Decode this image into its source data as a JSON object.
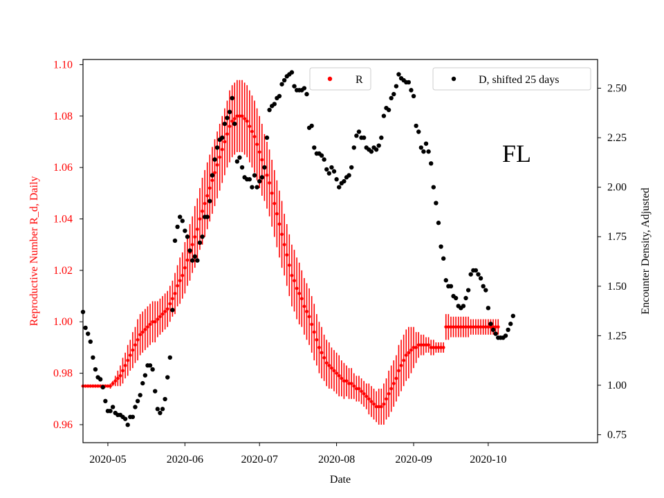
{
  "chart_data": {
    "type": "scatter",
    "title": "",
    "annotation": "FL",
    "xlabel": "Date",
    "ylabel_left": "Reproductive Number R_d, Daily",
    "ylabel_right": "Encounter Density, Adjusted",
    "left_color": "#ff0000",
    "right_color": "#000000",
    "x_range_days": [
      -10,
      197
    ],
    "ylim_left": [
      0.953,
      1.102
    ],
    "ylim_right": [
      0.71,
      2.645
    ],
    "x_ticks": [
      {
        "label": "2020-05",
        "day": 0
      },
      {
        "label": "2020-06",
        "day": 31
      },
      {
        "label": "2020-07",
        "day": 61
      },
      {
        "label": "2020-08",
        "day": 92
      },
      {
        "label": "2020-09",
        "day": 123
      },
      {
        "label": "2020-10",
        "day": 153
      }
    ],
    "y_ticks_left": [
      "0.96",
      "0.98",
      "1.00",
      "1.02",
      "1.04",
      "1.06",
      "1.08",
      "1.10"
    ],
    "y_ticks_right": [
      "0.75",
      "1.00",
      "1.25",
      "1.50",
      "1.75",
      "2.00",
      "2.25",
      "2.50"
    ],
    "legend": [
      {
        "label": "R",
        "color": "#ff0000",
        "position": "top-center"
      },
      {
        "label": "D, shifted 25 days",
        "color": "#000000",
        "position": "top-right"
      }
    ],
    "series_R": {
      "name": "R",
      "start_day": -10,
      "day_step": 1,
      "mean": [
        0.975,
        0.975,
        0.975,
        0.975,
        0.975,
        0.975,
        0.975,
        0.975,
        0.975,
        0.975,
        0.975,
        0.975,
        0.976,
        0.977,
        0.978,
        0.979,
        0.981,
        0.983,
        0.985,
        0.987,
        0.989,
        0.991,
        0.993,
        0.995,
        0.996,
        0.997,
        0.998,
        0.999,
        1.0,
        1.0,
        1.001,
        1.002,
        1.003,
        1.004,
        1.005,
        1.007,
        1.009,
        1.011,
        1.014,
        1.016,
        1.018,
        1.021,
        1.024,
        1.027,
        1.03,
        1.033,
        1.036,
        1.04,
        1.043,
        1.046,
        1.049,
        1.052,
        1.055,
        1.058,
        1.061,
        1.064,
        1.067,
        1.07,
        1.073,
        1.076,
        1.078,
        1.079,
        1.08,
        1.08,
        1.08,
        1.079,
        1.078,
        1.076,
        1.074,
        1.072,
        1.069,
        1.066,
        1.063,
        1.06,
        1.057,
        1.054,
        1.05,
        1.046,
        1.042,
        1.038,
        1.034,
        1.03,
        1.026,
        1.022,
        1.018,
        1.016,
        1.013,
        1.011,
        1.009,
        1.006,
        1.004,
        1.002,
        0.999,
        0.996,
        0.993,
        0.99,
        0.988,
        0.986,
        0.984,
        0.983,
        0.982,
        0.981,
        0.98,
        0.979,
        0.978,
        0.977,
        0.977,
        0.976,
        0.976,
        0.975,
        0.974,
        0.974,
        0.973,
        0.972,
        0.971,
        0.97,
        0.969,
        0.968,
        0.967,
        0.967,
        0.967,
        0.968,
        0.97,
        0.972,
        0.974,
        0.976,
        0.978,
        0.981,
        0.983,
        0.985,
        0.987,
        0.988,
        0.989,
        0.99,
        0.99,
        0.991,
        0.991,
        0.991,
        0.991,
        0.991,
        0.99,
        0.99,
        0.99,
        0.99,
        0.99,
        0.99,
        0.998,
        0.998,
        0.998,
        0.998,
        0.998,
        0.998,
        0.998,
        0.998,
        0.998,
        0.998,
        0.998,
        0.998,
        0.998,
        0.998,
        0.998,
        0.998,
        0.998,
        0.998,
        0.998,
        0.998,
        0.998,
        0.998
      ],
      "halfwidth": [
        0.0005,
        0.0005,
        0.0005,
        0.0005,
        0.0005,
        0.0005,
        0.0005,
        0.0005,
        0.0005,
        0.0005,
        0.0005,
        0.001,
        0.001,
        0.002,
        0.003,
        0.004,
        0.005,
        0.005,
        0.006,
        0.006,
        0.007,
        0.007,
        0.008,
        0.008,
        0.008,
        0.008,
        0.008,
        0.008,
        0.008,
        0.008,
        0.007,
        0.007,
        0.007,
        0.007,
        0.007,
        0.007,
        0.007,
        0.008,
        0.008,
        0.009,
        0.009,
        0.01,
        0.01,
        0.011,
        0.011,
        0.012,
        0.012,
        0.012,
        0.013,
        0.013,
        0.013,
        0.013,
        0.013,
        0.013,
        0.013,
        0.013,
        0.013,
        0.013,
        0.013,
        0.014,
        0.014,
        0.014,
        0.014,
        0.014,
        0.014,
        0.014,
        0.014,
        0.014,
        0.014,
        0.014,
        0.014,
        0.014,
        0.014,
        0.013,
        0.013,
        0.013,
        0.013,
        0.013,
        0.013,
        0.013,
        0.013,
        0.012,
        0.012,
        0.012,
        0.012,
        0.012,
        0.012,
        0.012,
        0.011,
        0.011,
        0.011,
        0.011,
        0.011,
        0.011,
        0.01,
        0.01,
        0.01,
        0.009,
        0.009,
        0.009,
        0.008,
        0.008,
        0.008,
        0.008,
        0.007,
        0.007,
        0.006,
        0.006,
        0.006,
        0.005,
        0.005,
        0.005,
        0.005,
        0.005,
        0.005,
        0.006,
        0.006,
        0.006,
        0.006,
        0.007,
        0.007,
        0.008,
        0.008,
        0.009,
        0.009,
        0.009,
        0.009,
        0.01,
        0.01,
        0.01,
        0.01,
        0.01,
        0.009,
        0.008,
        0.006,
        0.005,
        0.004,
        0.004,
        0.003,
        0.003,
        0.003,
        0.003,
        0.002,
        0.002,
        0.002,
        0.002,
        0.005,
        0.005,
        0.004,
        0.004,
        0.004,
        0.004,
        0.004,
        0.004,
        0.004,
        0.004,
        0.003,
        0.003,
        0.003,
        0.003,
        0.003,
        0.003,
        0.003,
        0.003,
        0.003,
        0.003,
        0.003,
        0.003
      ]
    },
    "series_D": {
      "name": "D, shifted 25 days",
      "start_day": -10,
      "day_step": 1,
      "values": [
        1.37,
        1.29,
        1.26,
        1.22,
        1.14,
        1.08,
        1.04,
        1.03,
        0.99,
        0.92,
        0.87,
        0.87,
        0.89,
        0.86,
        0.85,
        0.85,
        0.84,
        0.83,
        0.8,
        0.84,
        0.84,
        0.89,
        0.92,
        0.95,
        1.01,
        1.05,
        1.1,
        1.1,
        1.08,
        0.97,
        0.88,
        0.86,
        0.88,
        0.93,
        1.04,
        1.14,
        1.38,
        1.73,
        1.8,
        1.85,
        1.83,
        1.78,
        1.75,
        1.68,
        1.63,
        1.65,
        1.63,
        1.72,
        1.75,
        1.85,
        1.85,
        1.93,
        2.06,
        2.14,
        2.2,
        2.24,
        2.25,
        2.32,
        2.35,
        2.38,
        2.45,
        2.32,
        2.13,
        2.15,
        2.1,
        2.05,
        2.04,
        2.04,
        2.0,
        2.06,
        2.0,
        2.03,
        2.05,
        2.1,
        2.25,
        2.39,
        2.41,
        2.42,
        2.45,
        2.46,
        2.52,
        2.54,
        2.56,
        2.57,
        2.58,
        2.51,
        2.49,
        2.49,
        2.49,
        2.5,
        2.47,
        2.3,
        2.31,
        2.2,
        2.17,
        2.17,
        2.16,
        2.14,
        2.09,
        2.07,
        2.1,
        2.08,
        2.04,
        2.0,
        2.02,
        2.03,
        2.05,
        2.06,
        2.1,
        2.2,
        2.26,
        2.28,
        2.25,
        2.25,
        2.2,
        2.19,
        2.18,
        2.2,
        2.19,
        2.21,
        2.25,
        2.36,
        2.4,
        2.39,
        2.45,
        2.47,
        2.51,
        2.57,
        2.55,
        2.54,
        2.53,
        2.53,
        2.49,
        2.46,
        2.31,
        2.28,
        2.2,
        2.18,
        2.22,
        2.18,
        2.12,
        2.0,
        1.92,
        1.82,
        1.7,
        1.64,
        1.53,
        1.5,
        1.5,
        1.45,
        1.44,
        1.4,
        1.39,
        1.4,
        1.44,
        1.48,
        1.56,
        1.58,
        1.58,
        1.56,
        1.54,
        1.5,
        1.48,
        1.39,
        1.31,
        1.28,
        1.26,
        1.24,
        1.24,
        1.24,
        1.25,
        1.28,
        1.31,
        1.35
      ]
    }
  }
}
